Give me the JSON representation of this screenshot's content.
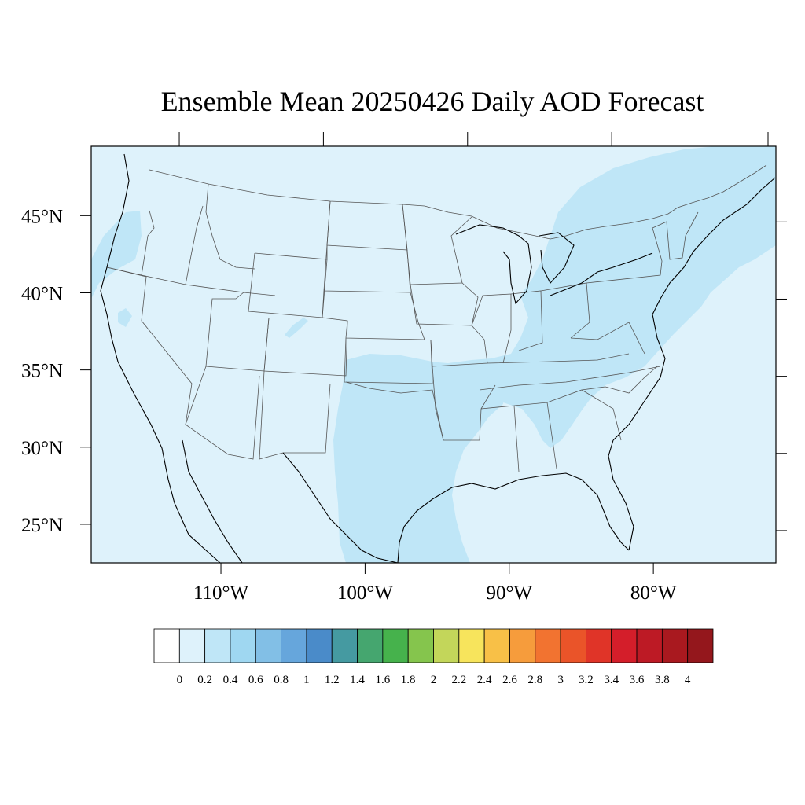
{
  "title": "Ensemble Mean 20250426 Daily AOD Forecast",
  "map": {
    "projection": "lat-lon",
    "lon_range": [
      -119,
      -71.5
    ],
    "lat_range": [
      22.5,
      49.5
    ],
    "lat_ticks": [
      {
        "value": 45,
        "label": "45°N"
      },
      {
        "value": 40,
        "label": "40°N"
      },
      {
        "value": 35,
        "label": "35°N"
      },
      {
        "value": 30,
        "label": "30°N"
      },
      {
        "value": 25,
        "label": "25°N"
      }
    ],
    "lon_ticks": [
      {
        "value": -110,
        "label": "110°W"
      },
      {
        "value": -100,
        "label": "100°W"
      },
      {
        "value": -90,
        "label": "90°W"
      },
      {
        "value": -80,
        "label": "80°W"
      }
    ],
    "background_aod_class": "0-0.2",
    "colors": {
      "class_0_0.2": "#def2fb",
      "class_0.2_0.4": "#bfe6f7",
      "border": "#000000",
      "state_line": "#555555"
    }
  },
  "colorbar": {
    "colors": [
      "#ffffff",
      "#def2fb",
      "#bfe6f7",
      "#9fd7f1",
      "#82bfe6",
      "#66a6dc",
      "#4a8bc9",
      "#459aa1",
      "#45a66f",
      "#46b24c",
      "#85c54d",
      "#c3d65a",
      "#f7e45c",
      "#f8c047",
      "#f69c3c",
      "#f27330",
      "#ea5429",
      "#e03428",
      "#d41e2a",
      "#bd1a25",
      "#a9191f",
      "#94171c"
    ],
    "labels": [
      "0",
      "0.2",
      "0.4",
      "0.6",
      "0.8",
      "1",
      "1.2",
      "1.4",
      "1.6",
      "1.8",
      "2",
      "2.2",
      "2.4",
      "2.6",
      "2.8",
      "3",
      "3.2",
      "3.4",
      "3.6",
      "3.8",
      "4"
    ]
  }
}
